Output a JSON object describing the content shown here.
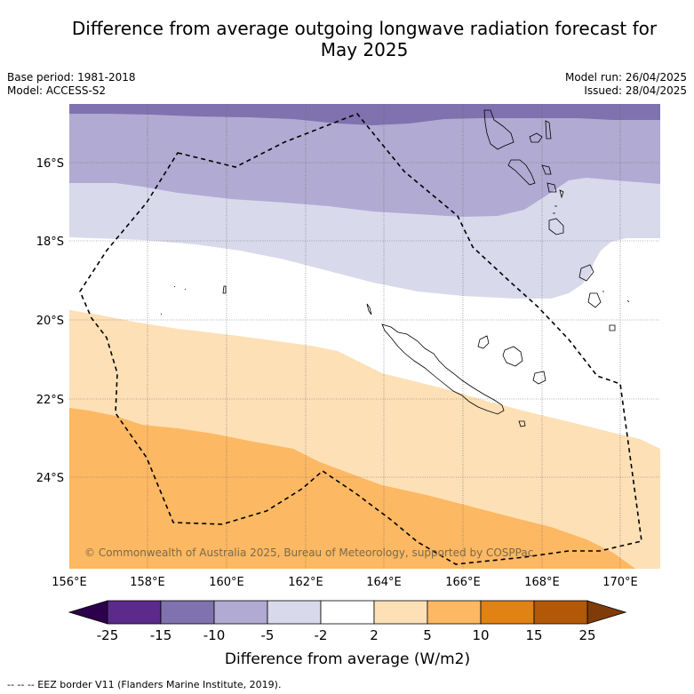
{
  "title_line1": "Difference from average outgoing longwave radiation forecast for",
  "title_line2": "May 2025",
  "base_period": "Base period: 1981-2018",
  "model": "Model: ACCESS-S2",
  "model_run": "Model run: 26/04/2025",
  "issued": "Issued: 28/04/2025",
  "copyright": "© Commonwealth of Australia 2025, Bureau of Meteorology, supported by COSPPac",
  "lat_labels": [
    "16°S",
    "18°S",
    "20°S",
    "22°S",
    "24°S"
  ],
  "lon_labels": [
    "156°E",
    "158°E",
    "160°E",
    "162°E",
    "164°E",
    "166°E",
    "168°E",
    "170°E"
  ],
  "colorbar": {
    "ticks": [
      "-25",
      "-15",
      "-10",
      "-5",
      "-2",
      "2",
      "5",
      "10",
      "15",
      "25"
    ],
    "colors": [
      "#5b2a8a",
      "#7f72ae",
      "#b1aad3",
      "#d9d9ec",
      "#ffffff",
      "#fee0b6",
      "#fdb863",
      "#e08214",
      "#b35806"
    ],
    "extend_low_color": "#2d004b",
    "extend_high_color": "#7f3b08",
    "label": "Difference from average (W/m2)"
  },
  "legend_note": "--  --  -- EEZ border V11 (Flanders Marine Institute, 2019)."
}
